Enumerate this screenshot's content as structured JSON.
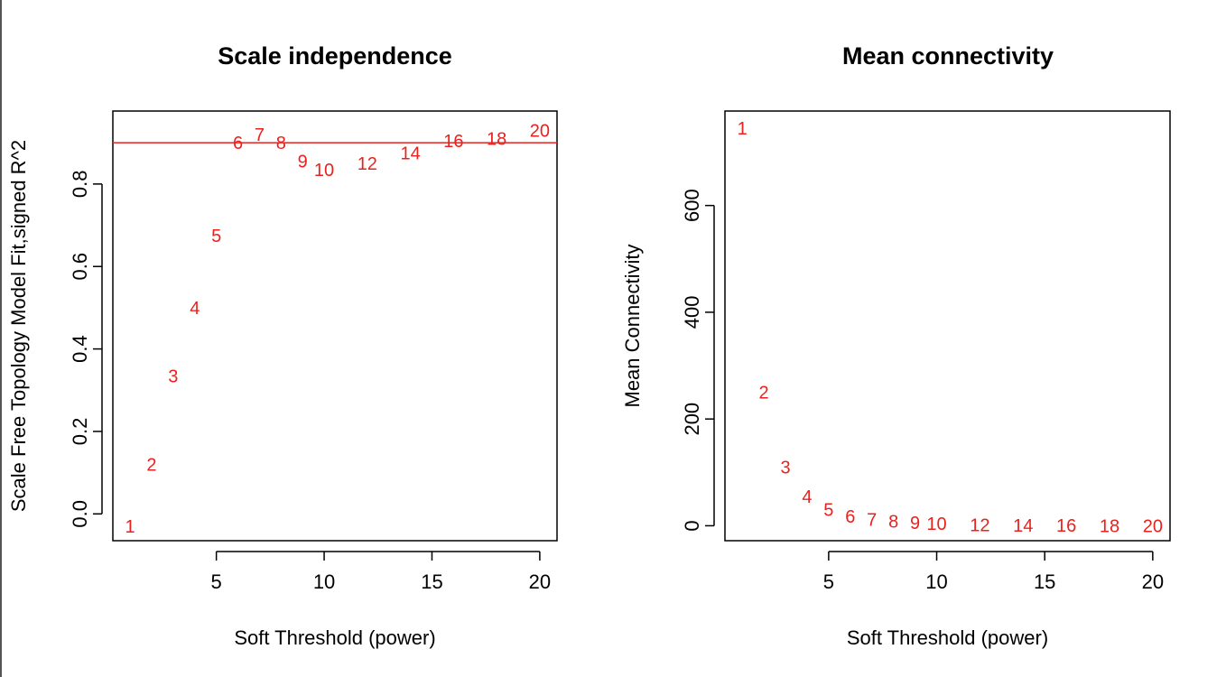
{
  "chart_data": [
    {
      "type": "scatter",
      "title": "Scale independence",
      "xlabel": "Soft Threshold (power)",
      "ylabel": "Scale Free Topology Model Fit,signed R^2",
      "xlim": [
        0.2,
        20.8
      ],
      "ylim": [
        -0.065,
        0.977
      ],
      "xticks": [
        5,
        10,
        15,
        20
      ],
      "yticks": [
        0.0,
        0.2,
        0.4,
        0.6,
        0.8
      ],
      "ytick_labels": [
        "0.0",
        "0.2",
        "0.4",
        "0.6",
        "0.8"
      ],
      "grid": false,
      "point_color": "#e8231f",
      "points": [
        {
          "x": 1,
          "y": -0.03,
          "label": "1"
        },
        {
          "x": 2,
          "y": 0.12,
          "label": "2"
        },
        {
          "x": 3,
          "y": 0.335,
          "label": "3"
        },
        {
          "x": 4,
          "y": 0.5,
          "label": "4"
        },
        {
          "x": 5,
          "y": 0.675,
          "label": "5"
        },
        {
          "x": 6,
          "y": 0.9,
          "label": "6"
        },
        {
          "x": 7,
          "y": 0.92,
          "label": "7"
        },
        {
          "x": 8,
          "y": 0.9,
          "label": "8"
        },
        {
          "x": 9,
          "y": 0.855,
          "label": "9"
        },
        {
          "x": 10,
          "y": 0.835,
          "label": "10"
        },
        {
          "x": 12,
          "y": 0.85,
          "label": "12"
        },
        {
          "x": 14,
          "y": 0.875,
          "label": "14"
        },
        {
          "x": 16,
          "y": 0.905,
          "label": "16"
        },
        {
          "x": 18,
          "y": 0.91,
          "label": "18"
        },
        {
          "x": 20,
          "y": 0.93,
          "label": "20"
        }
      ],
      "hline": {
        "y": 0.9,
        "color": "#e8231f"
      }
    },
    {
      "type": "scatter",
      "title": "Mean connectivity",
      "xlabel": "Soft Threshold (power)",
      "ylabel": "Mean Connectivity",
      "xlim": [
        0.2,
        20.8
      ],
      "ylim": [
        -28,
        777
      ],
      "xticks": [
        5,
        10,
        15,
        20
      ],
      "yticks": [
        0,
        200,
        400,
        600
      ],
      "ytick_labels": [
        "0",
        "200",
        "400",
        "600"
      ],
      "grid": false,
      "point_color": "#e8231f",
      "points": [
        {
          "x": 1,
          "y": 745,
          "label": "1"
        },
        {
          "x": 2,
          "y": 250,
          "label": "2"
        },
        {
          "x": 3,
          "y": 110,
          "label": "3"
        },
        {
          "x": 4,
          "y": 55,
          "label": "4"
        },
        {
          "x": 5,
          "y": 30,
          "label": "5"
        },
        {
          "x": 6,
          "y": 18,
          "label": "6"
        },
        {
          "x": 7,
          "y": 12,
          "label": "7"
        },
        {
          "x": 8,
          "y": 8,
          "label": "8"
        },
        {
          "x": 9,
          "y": 6,
          "label": "9"
        },
        {
          "x": 10,
          "y": 4,
          "label": "10"
        },
        {
          "x": 12,
          "y": 2,
          "label": "12"
        },
        {
          "x": 14,
          "y": 1,
          "label": "14"
        },
        {
          "x": 16,
          "y": 0.5,
          "label": "16"
        },
        {
          "x": 18,
          "y": 0.3,
          "label": "18"
        },
        {
          "x": 20,
          "y": 0.2,
          "label": "20"
        }
      ]
    }
  ]
}
